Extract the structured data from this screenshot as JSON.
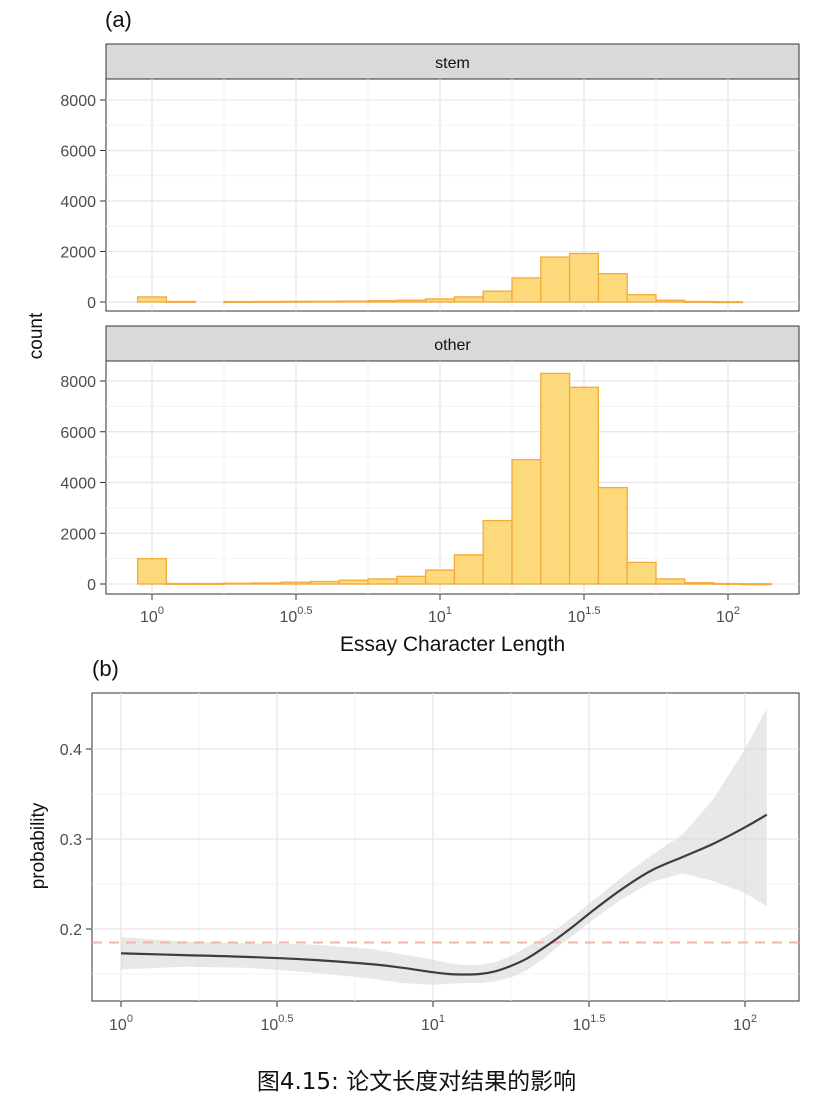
{
  "caption": "图4.15: 论文长度对结果的影响",
  "chart_data": [
    {
      "type": "bar",
      "panel_label": "(a)",
      "ylabel": "count",
      "xlabel": "Essay Character Length",
      "x_scale": "log10",
      "x_ticks": [
        {
          "value": 1,
          "base": "10",
          "exp": "0"
        },
        {
          "value": 3.1623,
          "base": "10",
          "exp": "0.5"
        },
        {
          "value": 10,
          "base": "10",
          "exp": "1"
        },
        {
          "value": 31.623,
          "base": "10",
          "exp": "1.5"
        },
        {
          "value": 100,
          "base": "10",
          "exp": "2"
        }
      ],
      "y_ticks": [
        "0",
        "2000",
        "4000",
        "6000",
        "8000"
      ],
      "ylim": [
        0,
        8700
      ],
      "bin_centers_log10": [
        0,
        0.1,
        0.2,
        0.3,
        0.4,
        0.5,
        0.6,
        0.7,
        0.8,
        0.9,
        1.0,
        1.1,
        1.2,
        1.3,
        1.4,
        1.5,
        1.6,
        1.7,
        1.8,
        1.9,
        2.0,
        2.1
      ],
      "grid": true,
      "colors": {
        "fill": "#fcd97a",
        "stroke": "#f5a93a",
        "strip": "#d9d9d9",
        "grid": "#ebebeb"
      },
      "facets": [
        {
          "name": "stem",
          "values": [
            200,
            20,
            0,
            15,
            20,
            25,
            30,
            35,
            50,
            70,
            120,
            200,
            430,
            950,
            1780,
            1920,
            1120,
            290,
            70,
            20,
            10,
            0
          ]
        },
        {
          "name": "other",
          "values": [
            1000,
            20,
            20,
            30,
            40,
            70,
            100,
            150,
            200,
            300,
            550,
            1150,
            2500,
            4900,
            8300,
            7750,
            3800,
            850,
            200,
            50,
            20,
            10
          ]
        }
      ]
    },
    {
      "type": "line",
      "panel_label": "(b)",
      "ylabel": "probability",
      "xlabel": "",
      "x_scale": "log10",
      "x_ticks": [
        {
          "value": 1,
          "base": "10",
          "exp": "0"
        },
        {
          "value": 3.1623,
          "base": "10",
          "exp": "0.5"
        },
        {
          "value": 10,
          "base": "10",
          "exp": "1"
        },
        {
          "value": 31.623,
          "base": "10",
          "exp": "1.5"
        },
        {
          "value": 100,
          "base": "10",
          "exp": "2"
        }
      ],
      "y_ticks": [
        "0.2",
        "0.3",
        "0.4"
      ],
      "ylim": [
        0.13,
        0.455
      ],
      "grid": true,
      "reference_line": {
        "y": 0.185,
        "color": "#f6b3a8",
        "style": "dashed"
      },
      "colors": {
        "line": "#3d3d3d",
        "band": "#d9d9d9"
      },
      "series": [
        {
          "x_log10": [
            0,
            0.2,
            0.4,
            0.6,
            0.8,
            0.9,
            1.0,
            1.05,
            1.1,
            1.15,
            1.2,
            1.25,
            1.3,
            1.35,
            1.4,
            1.45,
            1.5,
            1.6,
            1.7,
            1.8,
            1.9,
            2.0,
            2.07
          ],
          "y": [
            0.173,
            0.171,
            0.169,
            0.166,
            0.161,
            0.157,
            0.152,
            0.15,
            0.1495,
            0.15,
            0.153,
            0.159,
            0.167,
            0.178,
            0.19,
            0.203,
            0.217,
            0.243,
            0.265,
            0.28,
            0.295,
            0.313,
            0.327
          ],
          "lower": [
            0.155,
            0.158,
            0.157,
            0.152,
            0.145,
            0.14,
            0.138,
            0.139,
            0.14,
            0.14,
            0.142,
            0.146,
            0.154,
            0.166,
            0.18,
            0.193,
            0.207,
            0.232,
            0.252,
            0.262,
            0.253,
            0.24,
            0.225
          ],
          "upper": [
            0.191,
            0.186,
            0.184,
            0.183,
            0.178,
            0.172,
            0.166,
            0.162,
            0.16,
            0.16,
            0.163,
            0.17,
            0.18,
            0.19,
            0.201,
            0.214,
            0.228,
            0.256,
            0.282,
            0.305,
            0.345,
            0.4,
            0.445
          ]
        }
      ]
    }
  ]
}
